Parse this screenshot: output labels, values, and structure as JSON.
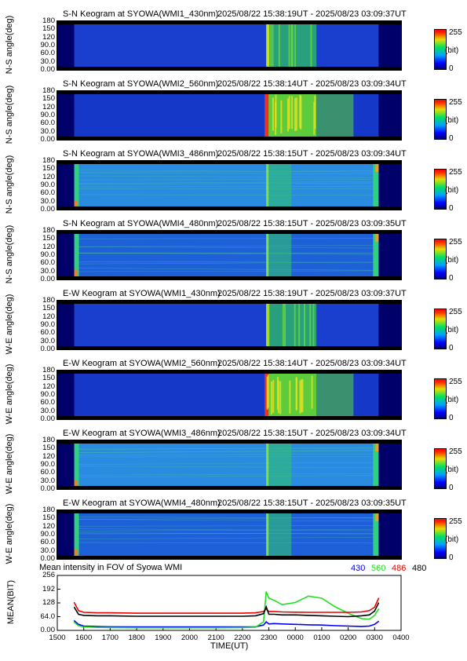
{
  "panels": [
    {
      "title": "S-N Keogram at SYOWA(WMI1_430nm)",
      "time_range": "2025/08/22 15:38:19UT - 2025/08/23 03:09:37UT",
      "ylabel": "N-S angle(deg)",
      "kind": "430"
    },
    {
      "title": "S-N Keogram at SYOWA(WMI2_560nm)",
      "time_range": "2025/08/22 15:38:14UT - 2025/08/23 03:09:34UT",
      "ylabel": "N-S angle(deg)",
      "kind": "560"
    },
    {
      "title": "S-N Keogram at SYOWA(WMI3_486nm)",
      "time_range": "2025/08/22 15:38:15UT - 2025/08/23 03:09:34UT",
      "ylabel": "N-S angle(deg)",
      "kind": "486"
    },
    {
      "title": "S-N Keogram at SYOWA(WMI4_480nm)",
      "time_range": "2025/08/22 15:38:15UT - 2025/08/23 03:09:35UT",
      "ylabel": "N-S angle(deg)",
      "kind": "480"
    },
    {
      "title": "E-W Keogram at SYOWA(WMI1_430nm)",
      "time_range": "2025/08/22 15:38:19UT - 2025/08/23 03:09:37UT",
      "ylabel": "W-E angle(deg)",
      "kind": "430"
    },
    {
      "title": "E-W Keogram at SYOWA(WMI2_560nm)",
      "time_range": "2025/08/22 15:38:14UT - 2025/08/23 03:09:34UT",
      "ylabel": "W-E angle(deg)",
      "kind": "560"
    },
    {
      "title": "E-W Keogram at SYOWA(WMI3_486nm)",
      "time_range": "2025/08/22 15:38:15UT - 2025/08/23 03:09:34UT",
      "ylabel": "W-E angle(deg)",
      "kind": "486"
    },
    {
      "title": "E-W Keogram at SYOWA(WMI4_480nm)",
      "time_range": "2025/08/22 15:38:15UT - 2025/08/23 03:09:35UT",
      "ylabel": "W-E angle(deg)",
      "kind": "480"
    }
  ],
  "keogram_yticks": [
    "180",
    "150",
    "120",
    "90.0",
    "60.0",
    "30.0",
    "0.00"
  ],
  "colorbar": {
    "max_label": "255",
    "unit_label": "(bit)",
    "min_label": "0"
  },
  "mean_plot": {
    "title": "Mean intensity in FOV of Syowa WMI",
    "legend": [
      {
        "label": "430",
        "color": "#0000ff"
      },
      {
        "label": "560",
        "color": "#22dd22"
      },
      {
        "label": "486",
        "color": "#ee0000"
      },
      {
        "label": "480",
        "color": "#000000"
      }
    ],
    "ylabel": "MEAN(BIT)",
    "yticks": [
      "256",
      "192",
      "128",
      "64.0",
      "0.00"
    ],
    "xlabel": "TIME(UT)",
    "xticks": [
      "1500",
      "1600",
      "1700",
      "1800",
      "1900",
      "2000",
      "2100",
      "2200",
      "2300",
      "0000",
      "0100",
      "0200",
      "0300",
      "0400"
    ]
  },
  "chart_data": {
    "type": "line",
    "title": "Mean intensity in FOV of Syowa WMI",
    "xlabel": "TIME(UT)",
    "ylabel": "MEAN(BIT)",
    "xlim": [
      15.0,
      28.0
    ],
    "ylim": [
      0,
      256
    ],
    "grid": false,
    "legend_position": "top-right",
    "x": [
      15.64,
      15.8,
      16.0,
      16.5,
      17.0,
      18.0,
      19.0,
      20.0,
      21.0,
      22.0,
      22.5,
      22.8,
      22.9,
      23.0,
      23.2,
      23.5,
      24.0,
      24.5,
      25.0,
      25.5,
      26.0,
      26.5,
      26.8,
      27.0,
      27.15
    ],
    "series": [
      {
        "name": "430",
        "color": "#0000ff",
        "values": [
          45,
          28,
          20,
          18,
          17,
          16,
          16,
          16,
          16,
          16,
          17,
          25,
          40,
          30,
          32,
          30,
          28,
          26,
          25,
          22,
          20,
          18,
          20,
          28,
          42
        ]
      },
      {
        "name": "560",
        "color": "#22dd22",
        "values": [
          38,
          22,
          16,
          14,
          13,
          12,
          12,
          12,
          12,
          13,
          15,
          40,
          180,
          150,
          140,
          120,
          130,
          160,
          150,
          110,
          80,
          55,
          52,
          70,
          100
        ]
      },
      {
        "name": "486",
        "color": "#ee0000",
        "values": [
          130,
          92,
          84,
          82,
          82,
          80,
          80,
          80,
          80,
          80,
          82,
          88,
          100,
          88,
          88,
          86,
          85,
          84,
          84,
          84,
          84,
          86,
          92,
          108,
          150
        ]
      },
      {
        "name": "480",
        "color": "#000000",
        "values": [
          108,
          75,
          70,
          68,
          68,
          66,
          66,
          66,
          66,
          66,
          68,
          78,
          110,
          75,
          75,
          72,
          72,
          70,
          68,
          66,
          64,
          68,
          72,
          90,
          128
        ]
      }
    ]
  }
}
